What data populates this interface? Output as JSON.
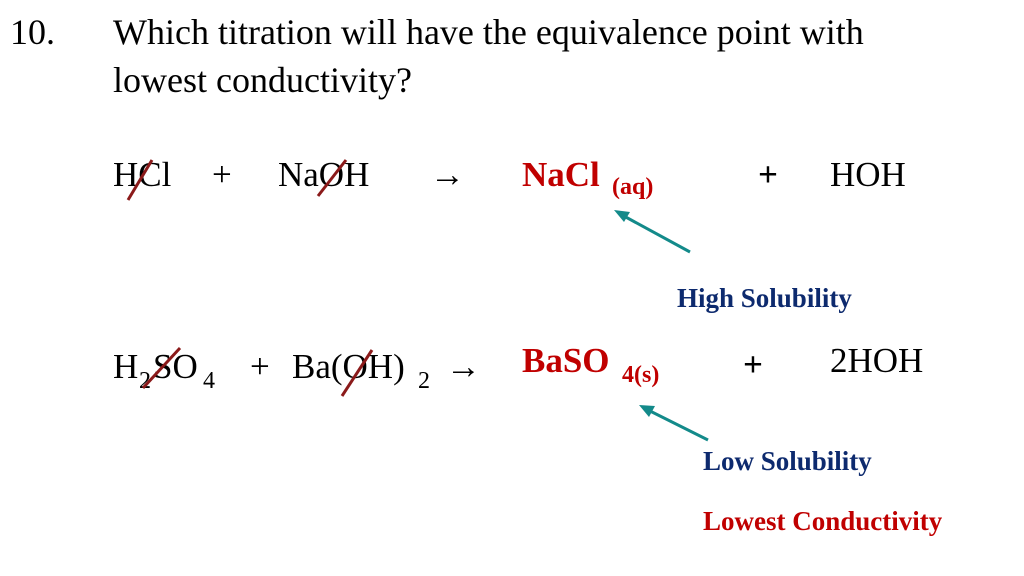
{
  "item_number": "10.",
  "question": [
    "Which titration will have the equivalence point with",
    "lowest conductivity?"
  ],
  "equations": [
    {
      "acid": "HCl",
      "plus1": "+",
      "base": "NaOH",
      "arrow": "→",
      "salt": "NaCl",
      "salt_state": "(aq)",
      "plus2": "+",
      "water": "HOH",
      "note": "High Solubility"
    },
    {
      "acid_h": "H",
      "acid_h_sub": "2",
      "acid_so": "SO",
      "acid_so_sub": "4",
      "plus1": "+",
      "base": "Ba(OH)",
      "base_sub": "2",
      "arrow": "→",
      "salt": "BaSO",
      "salt_state": "4(s)",
      "plus2": "+",
      "water": "2HOH",
      "note": "Low Solubility"
    }
  ],
  "conclusion": "Lowest Conductivity"
}
